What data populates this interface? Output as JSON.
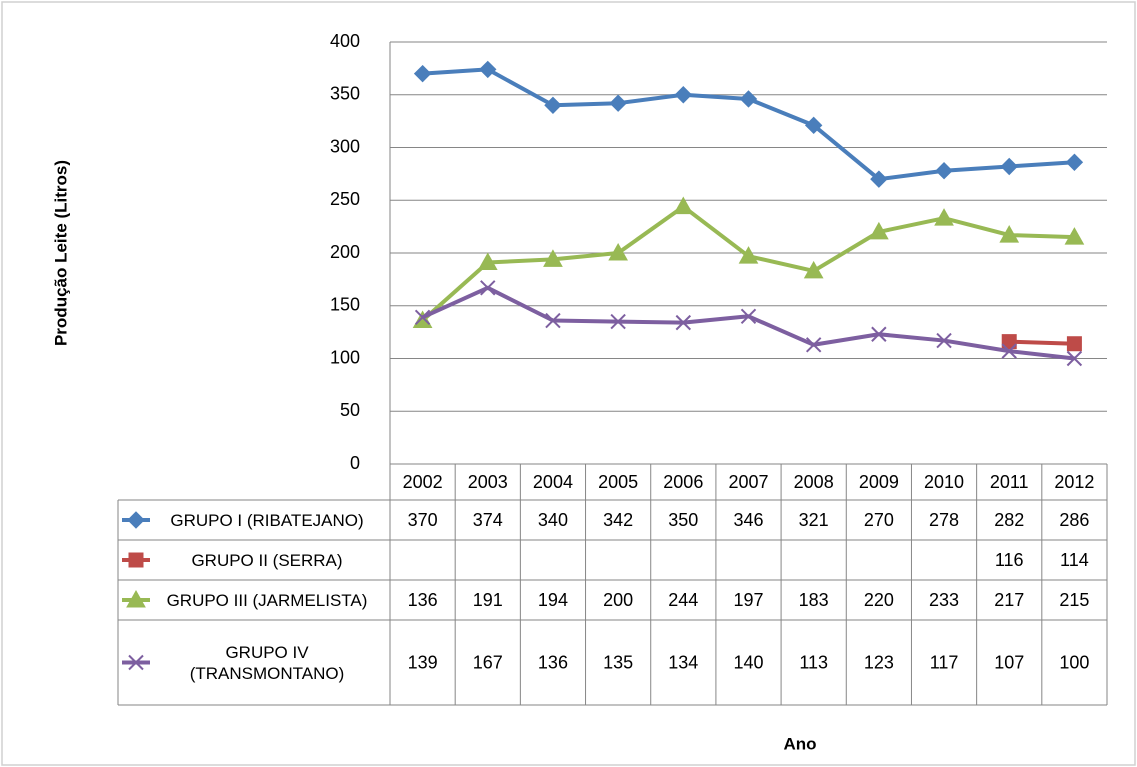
{
  "chart_data": {
    "type": "line",
    "y_label": "Produção Leite  (Litros)",
    "x_label": "Ano",
    "categories": [
      "2002",
      "2003",
      "2004",
      "2005",
      "2006",
      "2007",
      "2008",
      "2009",
      "2010",
      "2011",
      "2012"
    ],
    "series": [
      {
        "name": "GRUPO I (RIBATEJANO)",
        "color": "#4a7ebb",
        "marker": "diamond",
        "values": [
          370,
          374,
          340,
          342,
          350,
          346,
          321,
          270,
          278,
          282,
          286
        ]
      },
      {
        "name": "GRUPO II (SERRA)",
        "color": "#be4b48",
        "marker": "square",
        "values": [
          null,
          null,
          null,
          null,
          null,
          null,
          null,
          null,
          null,
          116,
          114
        ]
      },
      {
        "name": "GRUPO III (JARMELISTA)",
        "color": "#98b954",
        "marker": "triangle",
        "values": [
          136,
          191,
          194,
          200,
          244,
          197,
          183,
          220,
          233,
          217,
          215
        ]
      },
      {
        "name": "GRUPO IV (TRANSMONTANO)",
        "color": "#7d5fa0",
        "marker": "x",
        "values": [
          139,
          167,
          136,
          135,
          134,
          140,
          113,
          123,
          117,
          107,
          100
        ]
      }
    ],
    "ylim": [
      0,
      400
    ],
    "yticks": [
      0,
      50,
      100,
      150,
      200,
      250,
      300,
      350,
      400
    ],
    "grid": true
  }
}
